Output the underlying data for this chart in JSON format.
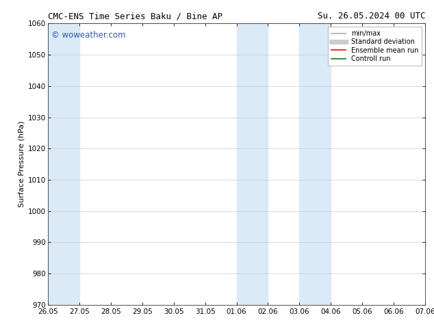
{
  "title_left": "CMC-ENS Time Series Baku / Bine AP",
  "title_right": "Su. 26.05.2024 00 UTC",
  "ylabel": "Surface Pressure (hPa)",
  "ylim": [
    970,
    1060
  ],
  "yticks": [
    970,
    980,
    990,
    1000,
    1010,
    1020,
    1030,
    1040,
    1050,
    1060
  ],
  "xtick_labels": [
    "26.05",
    "27.05",
    "28.05",
    "29.05",
    "30.05",
    "31.05",
    "01.06",
    "02.06",
    "03.06",
    "04.06",
    "05.06",
    "06.06",
    "07.06"
  ],
  "xtick_positions": [
    0,
    1,
    2,
    3,
    4,
    5,
    6,
    7,
    8,
    9,
    10,
    11,
    12
  ],
  "shaded_regions": [
    {
      "xmin": 0.0,
      "xmax": 1.0,
      "color": "#daeaf7"
    },
    {
      "xmin": 6.0,
      "xmax": 7.0,
      "color": "#daeaf7"
    },
    {
      "xmin": 8.0,
      "xmax": 9.0,
      "color": "#daeaf7"
    }
  ],
  "watermark_text": "© woweather.com",
  "watermark_color": "#3355bb",
  "background_color": "#ffffff",
  "plot_bg_color": "#ffffff",
  "grid_color": "#cccccc",
  "legend_entries": [
    {
      "label": "min/max",
      "color": "#aaaaaa",
      "lw": 1.2,
      "style": "solid"
    },
    {
      "label": "Standard deviation",
      "color": "#cccccc",
      "lw": 5,
      "style": "solid"
    },
    {
      "label": "Ensemble mean run",
      "color": "#ff0000",
      "lw": 1.2,
      "style": "solid"
    },
    {
      "label": "Controll run",
      "color": "#008800",
      "lw": 1.2,
      "style": "solid"
    }
  ],
  "figsize": [
    6.34,
    4.9
  ],
  "dpi": 100
}
